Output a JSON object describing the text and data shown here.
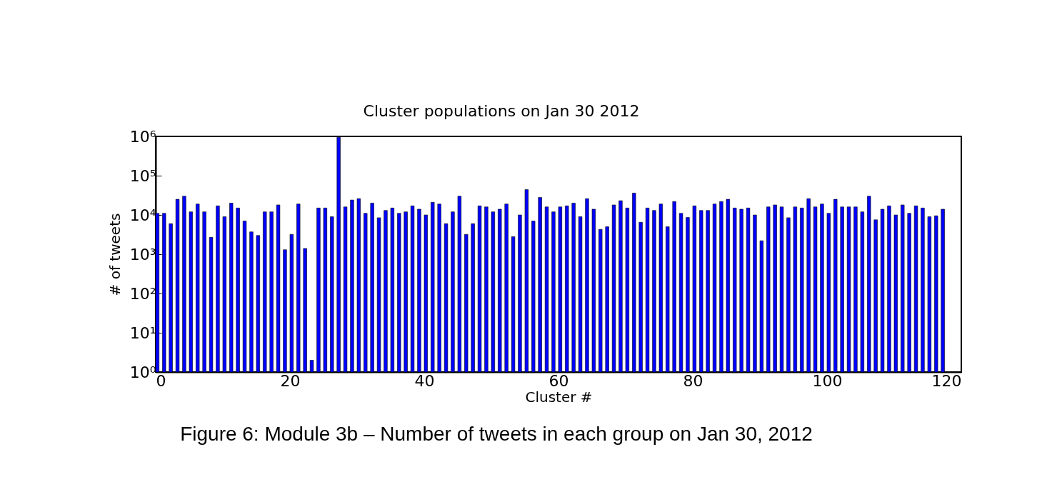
{
  "chart_data": {
    "type": "bar",
    "title": "Cluster populations on Jan 30 2012",
    "xlabel": "Cluster #",
    "ylabel": "# of tweets",
    "x": [
      0,
      1,
      2,
      3,
      4,
      5,
      6,
      7,
      8,
      9,
      10,
      11,
      12,
      13,
      14,
      15,
      16,
      17,
      18,
      19,
      20,
      21,
      22,
      23,
      24,
      25,
      26,
      27,
      28,
      29,
      30,
      31,
      32,
      33,
      34,
      35,
      36,
      37,
      38,
      39,
      40,
      41,
      42,
      43,
      44,
      45,
      46,
      47,
      48,
      49,
      50,
      51,
      52,
      53,
      54,
      55,
      56,
      57,
      58,
      59,
      60,
      61,
      62,
      63,
      64,
      65,
      66,
      67,
      68,
      69,
      70,
      71,
      72,
      73,
      74,
      75,
      76,
      77,
      78,
      79,
      80,
      81,
      82,
      83,
      84,
      85,
      86,
      87,
      88,
      89,
      90,
      91,
      92,
      93,
      94,
      95,
      96,
      97,
      98,
      99,
      100,
      101,
      102,
      103,
      104,
      105,
      106,
      107,
      108,
      109,
      110,
      111,
      112,
      113,
      114,
      115,
      116,
      117
    ],
    "values": [
      11000,
      11000,
      6000,
      25000,
      30000,
      12000,
      19000,
      12000,
      2700,
      17000,
      9000,
      20000,
      15000,
      7000,
      3700,
      3000,
      12000,
      12000,
      18000,
      1300,
      3200,
      19000,
      1400,
      2,
      15000,
      15000,
      9000,
      950000,
      16000,
      24000,
      26000,
      11000,
      20000,
      8500,
      13000,
      15000,
      11000,
      12000,
      17000,
      14000,
      10000,
      21000,
      19000,
      6000,
      12000,
      30000,
      3200,
      6000,
      17000,
      16000,
      12000,
      14000,
      19000,
      2800,
      10000,
      44000,
      7000,
      28000,
      16000,
      12000,
      16000,
      17000,
      20000,
      9000,
      26000,
      14000,
      4300,
      5000,
      18000,
      23000,
      15000,
      36000,
      6500,
      15000,
      13000,
      19000,
      5000,
      22000,
      11000,
      8600,
      17000,
      13000,
      13000,
      19000,
      22000,
      25000,
      15000,
      14000,
      15000,
      10000,
      2200,
      16000,
      18000,
      16000,
      8500,
      16000,
      15000,
      26000,
      16000,
      19000,
      11000,
      25000,
      16000,
      16000,
      16000,
      12000,
      30000,
      7500,
      14000,
      17000,
      10000,
      18000,
      11000,
      17000,
      15000,
      9000,
      9500,
      14000
    ],
    "color": "#0000ff",
    "log": "y",
    "xlim": [
      0,
      120
    ],
    "xticks": [
      0,
      20,
      40,
      60,
      80,
      100,
      120
    ],
    "ylim": [
      1,
      1000000
    ],
    "yticks": [
      {
        "value": 1,
        "label": "10⁰"
      },
      {
        "value": 10,
        "label": "10¹"
      },
      {
        "value": 100,
        "label": "10²"
      },
      {
        "value": 1000,
        "label": "10³"
      },
      {
        "value": 10000,
        "label": "10⁴"
      },
      {
        "value": 100000,
        "label": "10⁵"
      },
      {
        "value": 1000000,
        "label": "10⁶"
      }
    ],
    "grid": false,
    "annotations": [
      "Figure 6: Module 3b – Number of tweets in each group on Jan 30, 2012"
    ]
  }
}
